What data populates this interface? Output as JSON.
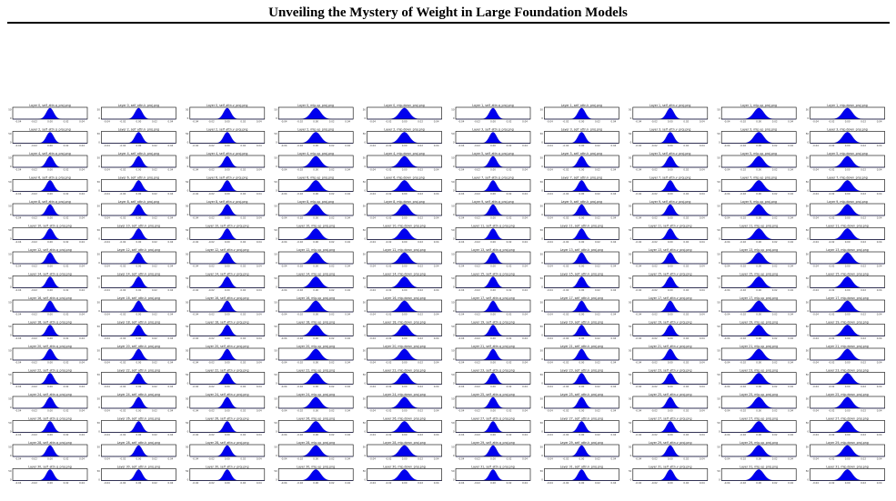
{
  "page": {
    "title": "Unveiling the Mystery of Weight in Large Foundation Models"
  },
  "chart_data": {
    "type": "area",
    "description_kind": "small-multiples histogram grid",
    "rows": 16,
    "cols": 10,
    "layers": [
      0,
      2,
      4,
      6,
      8,
      10,
      12,
      14,
      16,
      18,
      20,
      22,
      24,
      26,
      28,
      30
    ],
    "panel_kinds": [
      {
        "offset": 0,
        "name": "self_attn.q_proj"
      },
      {
        "offset": 0,
        "name": "self_attn.k_proj"
      },
      {
        "offset": 0,
        "name": "self_attn.v_proj"
      },
      {
        "offset": 0,
        "name": "mlp.up_proj"
      },
      {
        "offset": 0,
        "name": "mlp.down_proj"
      },
      {
        "offset": 1,
        "name": "self_attn.q_proj"
      },
      {
        "offset": 1,
        "name": "self_attn.k_proj"
      },
      {
        "offset": 1,
        "name": "self_attn.v_proj"
      },
      {
        "offset": 1,
        "name": "mlp.up_proj"
      },
      {
        "offset": 1,
        "name": "mlp.down_proj"
      }
    ],
    "x_ticks": [
      "-0.04",
      "-0.02",
      "0.00",
      "0.02",
      "0.04"
    ],
    "xlim": [
      -0.05,
      0.05
    ],
    "y_ticks": [
      "0",
      "50"
    ],
    "series_color": "#0000ee",
    "distribution": "bell-shaped, centered at 0"
  }
}
